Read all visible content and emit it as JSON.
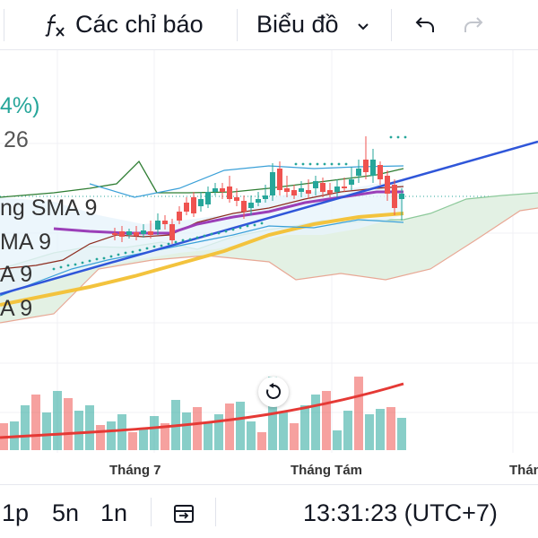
{
  "toolbar": {
    "indicators_label": "Các chỉ báo",
    "chart_type_label": "Biểu đồ",
    "indicators_icon": "fx-icon",
    "chart_type_icon": "chevron-down-icon",
    "undo_icon": "undo-icon",
    "redo_icon": "redo-icon"
  },
  "legend": {
    "change_pct": "4%)",
    "value": "26",
    "items": [
      "ng SMA 9",
      "MA 9",
      "A 9",
      "A 9"
    ]
  },
  "chart": {
    "reset_icon": "reset-icon",
    "x_ticks": [
      "Tháng 7",
      "Tháng Tám",
      "Thán"
    ],
    "colors": {
      "up": "#26a69a",
      "down": "#ef5350",
      "trendline": "#2f56d9",
      "sma_yellow": "#f3c33d",
      "sma_purple": "#9b3fb8",
      "cloud": "#e3f1e4",
      "volume_ma": "#e53935"
    }
  },
  "bottom": {
    "intervals": [
      "1p",
      "5n",
      "1n"
    ],
    "compare_icon": "date-range-icon",
    "time": "13:31:23 (UTC+7)"
  }
}
